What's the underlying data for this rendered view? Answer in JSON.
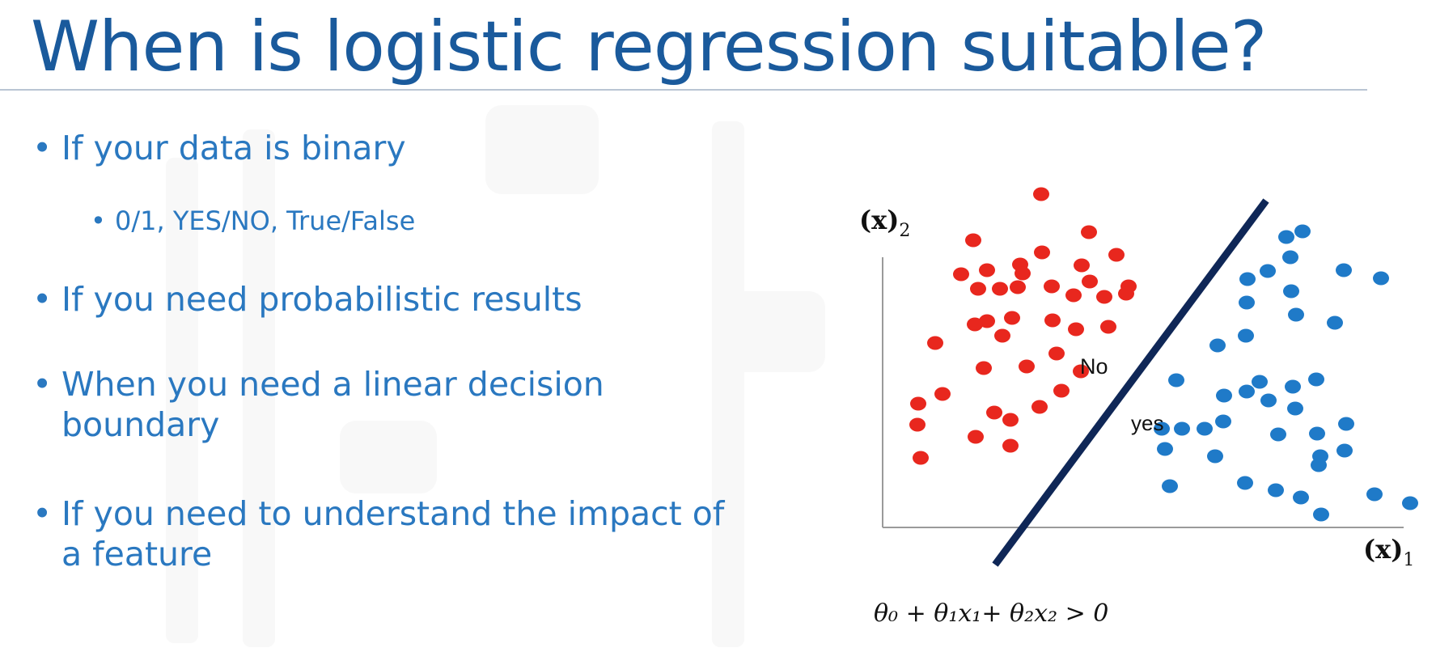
{
  "slide": {
    "title": "When is logistic regression suitable?"
  },
  "bullets": [
    {
      "text": "If your data is binary",
      "level": 1
    },
    {
      "text": "0/1, YES/NO,  True/False",
      "level": 2
    },
    {
      "text": "If you need probabilistic results",
      "level": 1
    },
    {
      "text": "When you need a linear decision boundary",
      "level": 1
    },
    {
      "text": "If you need to understand the impact of a feature",
      "level": 1
    }
  ],
  "diagram": {
    "y_axis_label": "(x)",
    "y_axis_sub": "2",
    "x_axis_label": "(x)",
    "x_axis_sub": "1",
    "label_no": "No",
    "label_yes": "yes",
    "boundary_equation": "θ₀ + θ₁x₁+ θ₂x₂ > 0",
    "colors": {
      "class_no": "#e8271e",
      "class_yes": "#1f7ac8",
      "boundary": "#0f2757"
    }
  }
}
